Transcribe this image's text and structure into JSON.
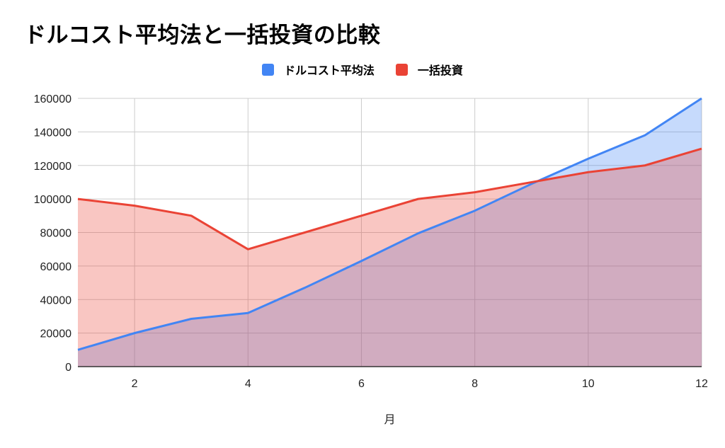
{
  "chart_data": {
    "type": "area",
    "title": "ドルコスト平均法と一括投資の比較",
    "xlabel": "月",
    "ylabel": "",
    "x": [
      1,
      2,
      3,
      4,
      5,
      6,
      7,
      8,
      9,
      10,
      11,
      12
    ],
    "xlim": [
      1,
      12
    ],
    "ylim": [
      0,
      160000
    ],
    "x_ticks": [
      2,
      4,
      6,
      8,
      10,
      12
    ],
    "y_ticks": [
      0,
      20000,
      40000,
      60000,
      80000,
      100000,
      120000,
      140000,
      160000
    ],
    "grid": true,
    "legend_position": "top-center",
    "series": [
      {
        "name": "ドルコスト平均法",
        "color": "#4285f4",
        "fill": "#c6d9fb",
        "values": [
          10000,
          20000,
          28500,
          32000,
          47000,
          63000,
          79500,
          93000,
          109000,
          124000,
          138000,
          160000
        ]
      },
      {
        "name": "一括投資",
        "color": "#ea4335",
        "fill": "#f8c6c2",
        "values": [
          100000,
          96000,
          90000,
          70000,
          80000,
          90000,
          100000,
          104000,
          110000,
          116000,
          120000,
          130000
        ]
      }
    ]
  }
}
